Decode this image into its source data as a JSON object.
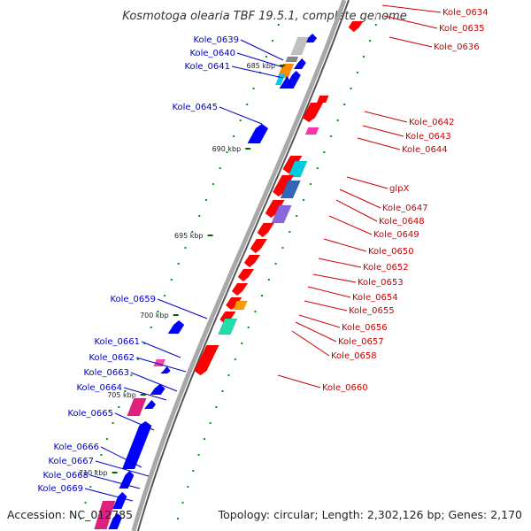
{
  "header": {
    "title": "Kosmotoga olearia TBF 19.5.1, complete genome"
  },
  "footer": {
    "accession": "Accession: NC_012785",
    "summary": "Topology: circular; Length: 2,302,126 bp; Genes: 2,170"
  },
  "colors": {
    "plus_strand_label": "#0000cc",
    "minus_strand_label": "#cc0000",
    "backbone": "#808080",
    "gene_default_blue": "#0000ff",
    "gene_default_red": "#ff0000",
    "tick_dots": "#009900"
  },
  "ticks": [
    {
      "label": "685 kbp"
    },
    {
      "label": "690 kbp"
    },
    {
      "label": "695 kbp"
    },
    {
      "label": "700 kbp"
    },
    {
      "label": "705 kbp"
    },
    {
      "label": "710 kbp"
    }
  ],
  "left_labels": [
    {
      "text": "Kole_0639"
    },
    {
      "text": "Kole_0640"
    },
    {
      "text": "Kole_0641"
    },
    {
      "text": "Kole_0645"
    },
    {
      "text": "Kole_0659"
    },
    {
      "text": "Kole_0661"
    },
    {
      "text": "Kole_0662"
    },
    {
      "text": "Kole_0663"
    },
    {
      "text": "Kole_0664"
    },
    {
      "text": "Kole_0665"
    },
    {
      "text": "Kole_0666"
    },
    {
      "text": "Kole_0667"
    },
    {
      "text": "Kole_0668"
    },
    {
      "text": "Kole_0669"
    }
  ],
  "right_labels": [
    {
      "text": "Kole_0634"
    },
    {
      "text": "Kole_0635"
    },
    {
      "text": "Kole_0636"
    },
    {
      "text": "Kole_0642"
    },
    {
      "text": "Kole_0643"
    },
    {
      "text": "Kole_0644"
    },
    {
      "text": "glpX"
    },
    {
      "text": "Kole_0647"
    },
    {
      "text": "Kole_0648"
    },
    {
      "text": "Kole_0649"
    },
    {
      "text": "Kole_0650"
    },
    {
      "text": "Kole_0652"
    },
    {
      "text": "Kole_0653"
    },
    {
      "text": "Kole_0654"
    },
    {
      "text": "Kole_0655"
    },
    {
      "text": "Kole_0656"
    },
    {
      "text": "Kole_0657"
    },
    {
      "text": "Kole_0658"
    },
    {
      "text": "Kole_0660"
    }
  ]
}
